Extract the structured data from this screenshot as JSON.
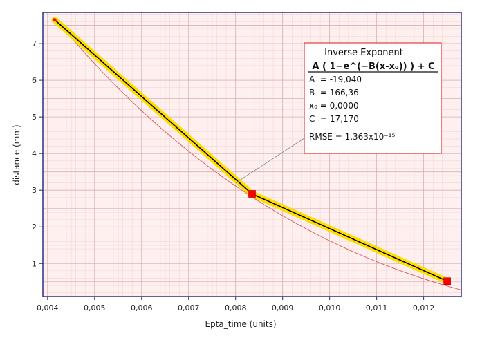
{
  "chart_data": {
    "type": "line",
    "xlabel": "Epta_time (units)",
    "ylabel": "distance (mm)",
    "xlim": [
      0.0039,
      0.0128
    ],
    "ylim": [
      0.1,
      7.85
    ],
    "x_ticks": [
      "0,004",
      "0,005",
      "0,006",
      "0,007",
      "0,008",
      "0,009",
      "0,010",
      "0,011",
      "0,012"
    ],
    "x_tick_values": [
      0.004,
      0.005,
      0.006,
      0.007,
      0.008,
      0.009,
      0.01,
      0.011,
      0.012
    ],
    "y_ticks": [
      "1",
      "2",
      "3",
      "4",
      "5",
      "6",
      "7"
    ],
    "y_tick_values": [
      1,
      2,
      3,
      4,
      5,
      6,
      7
    ],
    "grid": true,
    "series": [
      {
        "kind": "data",
        "x": [
          0.00415,
          0.00835,
          0.0125
        ],
        "y": [
          7.65,
          2.9,
          0.52
        ]
      },
      {
        "kind": "fit",
        "x": [
          0.00415,
          0.0128
        ],
        "y": [
          7.7,
          0.28
        ]
      }
    ],
    "colors": {
      "background": "#fff0f0",
      "grid_major": "#d9b0b0",
      "grid_minor": "#f2d6d6",
      "frame": "#1a237e",
      "data_line": "#000000",
      "data_highlight": "#ffdd00",
      "marker": "#ff0000",
      "fit_line": "#e35a5a"
    },
    "annotation": {
      "title": "Inverse Exponent",
      "formula": "A ( 1−e^(−B(x-x₀)) ) + C",
      "params": [
        "A  = -19,040",
        "B  = 166,36",
        "x₀ = 0,0000",
        "C  = 17,170"
      ],
      "rmse": "RMSE = 1,363x10⁻¹⁵",
      "pointer_to": {
        "x": 0.008,
        "y": 3.2
      }
    }
  }
}
